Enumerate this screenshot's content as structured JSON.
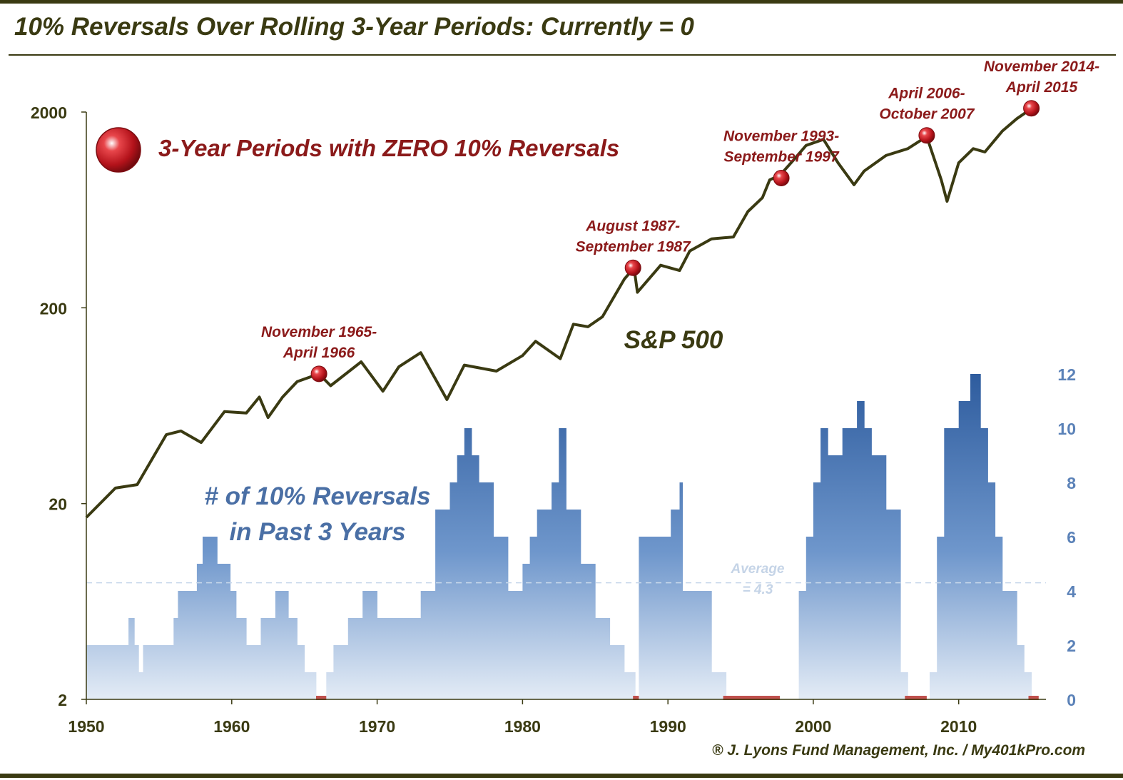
{
  "title": "10% Reversals Over Rolling 3-Year Periods: Currently = 0",
  "footer": "® J. Lyons Fund Management, Inc. / My401kPro.com",
  "chart_data": {
    "type": "line",
    "x_range": [
      1950,
      2016
    ],
    "x_ticks": [
      "1950",
      "1960",
      "1970",
      "1980",
      "1990",
      "2000",
      "2010"
    ],
    "y_left": {
      "scale": "log",
      "range": [
        2,
        2000
      ],
      "ticks": [
        "2",
        "20",
        "200",
        "2000"
      ]
    },
    "y_right": {
      "range": [
        0,
        12
      ],
      "ticks": [
        "0",
        "2",
        "4",
        "6",
        "8",
        "10",
        "12"
      ]
    },
    "colors": {
      "line": "#3a3a12",
      "bars": "#3a67a8",
      "marker": "#c0141a",
      "annotation": "#8b1a1a",
      "title": "#3a3a12",
      "blue_text": "#4a6fa5"
    },
    "line_series": {
      "name": "S&P 500",
      "x": [
        1950.0,
        1952.0,
        1953.5,
        1955.5,
        1956.5,
        1957.9,
        1959.5,
        1961.0,
        1961.9,
        1962.5,
        1963.5,
        1964.5,
        1966.0,
        1966.8,
        1968.9,
        1970.4,
        1971.5,
        1973.0,
        1974.8,
        1976.0,
        1978.2,
        1980.0,
        1980.9,
        1982.6,
        1983.5,
        1984.5,
        1985.5,
        1987.0,
        1987.67,
        1987.9,
        1989.5,
        1990.8,
        1991.5,
        1993.0,
        1994.5,
        1995.5,
        1996.5,
        1997.0,
        1997.7,
        1998.7,
        1999.5,
        2000.7,
        2001.7,
        2002.8,
        2003.5,
        2005.0,
        2006.5,
        2007.8,
        2008.8,
        2009.2,
        2010.0,
        2011.0,
        2011.8,
        2013.0,
        2014.0,
        2015.0
      ],
      "y": [
        17,
        24,
        25,
        45,
        47,
        41,
        59,
        58,
        70,
        55,
        70,
        84,
        92,
        80,
        106,
        75,
        100,
        118,
        68,
        102,
        95,
        114,
        135,
        110,
        165,
        160,
        180,
        280,
        320,
        240,
        330,
        310,
        390,
        450,
        460,
        620,
        730,
        900,
        950,
        1150,
        1350,
        1450,
        1100,
        850,
        1000,
        1200,
        1300,
        1500,
        900,
        700,
        1100,
        1300,
        1250,
        1600,
        1850,
        2080
      ]
    },
    "bar_series": {
      "name": "# of 10% Reversals in Past 3 Years",
      "x": [
        1950.0,
        1952.9,
        1953.3,
        1953.6,
        1953.9,
        1956.0,
        1956.3,
        1957.6,
        1958.0,
        1959.0,
        1959.9,
        1960.3,
        1961.0,
        1962.0,
        1963.0,
        1963.9,
        1964.5,
        1965.0,
        1965.3,
        1965.8,
        1966.5,
        1967.0,
        1968.0,
        1969.0,
        1970.0,
        1971.3,
        1973.0,
        1974.0,
        1975.0,
        1975.5,
        1976.0,
        1976.5,
        1977.0,
        1978.0,
        1979.0,
        1980.0,
        1980.5,
        1981.0,
        1982.0,
        1982.5,
        1983.0,
        1984.0,
        1985.0,
        1986.0,
        1987.0,
        1987.75,
        1988.0,
        1989.5,
        1990.2,
        1990.8,
        1991.0,
        1993.0,
        1994.0,
        1998.0,
        1999.0,
        1999.5,
        2000.0,
        2000.5,
        2001.0,
        2002.0,
        2003.0,
        2003.5,
        2004.0,
        2005.0,
        2006.0,
        2006.5,
        2008.0,
        2008.5,
        2009.0,
        2010.0,
        2010.8,
        2011.5,
        2012.0,
        2012.5,
        2013.0,
        2014.0,
        2014.5,
        2015.0
      ],
      "values": [
        2,
        3,
        2,
        1,
        2,
        3,
        4,
        5,
        6,
        5,
        4,
        3,
        2,
        3,
        4,
        3,
        2,
        1,
        1,
        0,
        1,
        2,
        3,
        4,
        3,
        3,
        4,
        7,
        8,
        9,
        10,
        9,
        8,
        6,
        4,
        5,
        6,
        7,
        8,
        10,
        7,
        5,
        3,
        2,
        1,
        0,
        6,
        6,
        7,
        8,
        4,
        1,
        0,
        0,
        4,
        6,
        8,
        10,
        9,
        10,
        11,
        10,
        9,
        7,
        1,
        0,
        1,
        6,
        10,
        11,
        12,
        10,
        8,
        6,
        4,
        2,
        1,
        0
      ]
    },
    "average": {
      "value": 4.3,
      "label_line1": "Average",
      "label_line2": "= 4.3"
    },
    "zero_periods": [
      [
        1965.8,
        1966.5
      ],
      [
        1987.6,
        1988.0
      ],
      [
        1993.8,
        1997.7
      ],
      [
        2006.3,
        2007.8
      ],
      [
        2014.8,
        2015.5
      ]
    ],
    "markers": [
      {
        "x": 1966.0,
        "y": 92,
        "label_line1": "November 1965-",
        "label_line2": "April 1966"
      },
      {
        "x": 1987.6,
        "y": 320,
        "label_line1": "August 1987-",
        "label_line2": "September 1987"
      },
      {
        "x": 1997.8,
        "y": 920,
        "label_line1": "November 1993-",
        "label_line2": "September 1997"
      },
      {
        "x": 2007.8,
        "y": 1520,
        "label_line1": "April 2006-",
        "label_line2": "October 2007"
      },
      {
        "x": 2015.0,
        "y": 2090,
        "label_line1": "November 2014-",
        "label_line2": "April 2015"
      }
    ],
    "legend": {
      "label": "3-Year Periods with ZERO 10% Reversals"
    },
    "series_labels": {
      "sp500": "S&P 500",
      "bars_line1": "# of 10% Reversals",
      "bars_line2": "in Past 3 Years"
    }
  }
}
